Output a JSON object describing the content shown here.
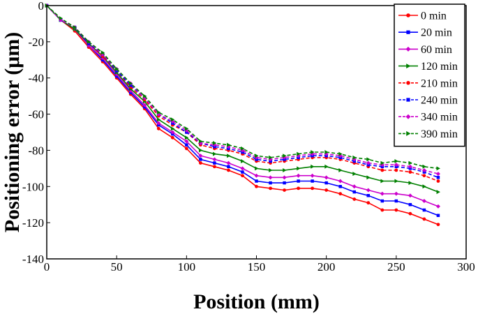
{
  "chart_data": {
    "type": "line",
    "xlabel": "Position (mm)",
    "ylabel": "Positioning error (μm)",
    "xlim": [
      0,
      300
    ],
    "ylim": [
      -140,
      0
    ],
    "xticks": [
      0,
      50,
      100,
      150,
      200,
      250,
      300
    ],
    "yticks": [
      0,
      -20,
      -40,
      -60,
      -80,
      -100,
      -120,
      -140
    ],
    "legend_position": "top-right",
    "x": [
      0,
      10,
      20,
      30,
      40,
      50,
      60,
      70,
      80,
      90,
      100,
      110,
      120,
      130,
      140,
      150,
      160,
      170,
      180,
      190,
      200,
      210,
      220,
      230,
      240,
      250,
      260,
      270,
      280
    ],
    "series": [
      {
        "name": "0 min",
        "color": "#ff0000",
        "dash": "solid",
        "marker": "circle",
        "values": [
          0,
          -8,
          -14,
          -23,
          -31,
          -40,
          -49,
          -57,
          -68,
          -73,
          -79,
          -87,
          -89,
          -91,
          -94,
          -100,
          -101,
          -102,
          -101,
          -101,
          -102,
          -104,
          -107,
          -109,
          -113,
          -113,
          -115,
          -118,
          -121
        ]
      },
      {
        "name": "20 min",
        "color": "#0000ff",
        "dash": "solid",
        "marker": "square",
        "values": [
          0,
          -8,
          -13,
          -22,
          -30,
          -39,
          -48,
          -56,
          -66,
          -71,
          -77,
          -85,
          -87,
          -89,
          -92,
          -97,
          -98,
          -98,
          -97,
          -97,
          -98,
          -100,
          -103,
          -105,
          -108,
          -108,
          -110,
          -113,
          -116
        ]
      },
      {
        "name": "60 min",
        "color": "#cc00cc",
        "dash": "solid",
        "marker": "diamond",
        "values": [
          0,
          -8,
          -13,
          -22,
          -29,
          -38,
          -47,
          -55,
          -65,
          -70,
          -75,
          -83,
          -85,
          -87,
          -90,
          -94,
          -95,
          -95,
          -94,
          -94,
          -95,
          -97,
          -100,
          -102,
          -104,
          -104,
          -105,
          -108,
          -111
        ]
      },
      {
        "name": "120 min",
        "color": "#008000",
        "dash": "solid",
        "marker": "triangle-right",
        "values": [
          0,
          -8,
          -13,
          -21,
          -28,
          -37,
          -46,
          -53,
          -63,
          -68,
          -73,
          -80,
          -82,
          -83,
          -86,
          -90,
          -91,
          -91,
          -90,
          -89,
          -89,
          -91,
          -93,
          -95,
          -97,
          -97,
          -98,
          -100,
          -103
        ]
      },
      {
        "name": "210 min",
        "color": "#ff0000",
        "dash": "dashed",
        "marker": "circle",
        "values": [
          0,
          -8,
          -12,
          -21,
          -28,
          -36,
          -45,
          -52,
          -61,
          -66,
          -70,
          -77,
          -79,
          -80,
          -82,
          -86,
          -87,
          -86,
          -85,
          -84,
          -84,
          -85,
          -87,
          -89,
          -91,
          -91,
          -92,
          -94,
          -97
        ]
      },
      {
        "name": "240 min",
        "color": "#0000ff",
        "dash": "dashed",
        "marker": "square",
        "values": [
          0,
          -8,
          -12,
          -21,
          -27,
          -36,
          -44,
          -51,
          -60,
          -65,
          -70,
          -76,
          -78,
          -79,
          -81,
          -85,
          -86,
          -85,
          -84,
          -83,
          -83,
          -84,
          -86,
          -88,
          -89,
          -89,
          -90,
          -92,
          -95
        ]
      },
      {
        "name": "340 min",
        "color": "#cc00cc",
        "dash": "dashed",
        "marker": "diamond",
        "values": [
          0,
          -8,
          -12,
          -20,
          -27,
          -35,
          -43,
          -51,
          -60,
          -64,
          -69,
          -76,
          -77,
          -78,
          -80,
          -84,
          -85,
          -84,
          -83,
          -82,
          -82,
          -83,
          -85,
          -87,
          -88,
          -88,
          -89,
          -91,
          -93
        ]
      },
      {
        "name": "390 min",
        "color": "#008000",
        "dash": "dashed",
        "marker": "triangle-right",
        "values": [
          0,
          -7,
          -12,
          -20,
          -26,
          -35,
          -43,
          -50,
          -59,
          -63,
          -68,
          -75,
          -76,
          -77,
          -79,
          -83,
          -84,
          -83,
          -82,
          -81,
          -81,
          -82,
          -84,
          -85,
          -87,
          -86,
          -87,
          -89,
          -90
        ]
      }
    ]
  }
}
